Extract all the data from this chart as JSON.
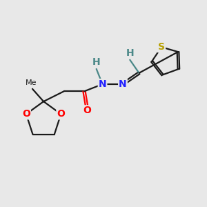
{
  "bg_color": "#e8e8e8",
  "bond_color": "#1a1a1a",
  "N_color": "#2020ff",
  "O_color": "#ff0000",
  "S_color": "#b8a000",
  "H_color": "#4a8888",
  "font_size_atom": 10,
  "font_size_h": 10,
  "font_size_me": 8,
  "line_width": 1.6,
  "xlim": [
    0,
    10
  ],
  "ylim": [
    0,
    10
  ]
}
